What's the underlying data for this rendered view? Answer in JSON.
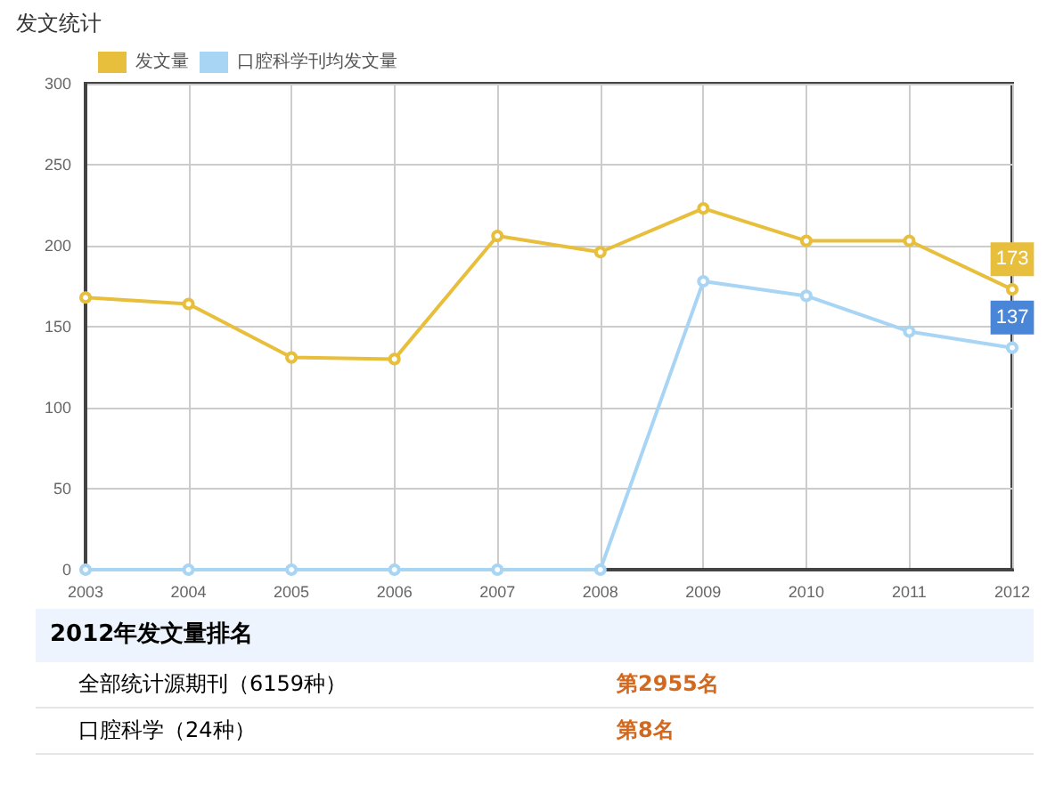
{
  "chart_data": {
    "type": "line",
    "title": "发文统计",
    "categories": [
      "2003",
      "2004",
      "2005",
      "2006",
      "2007",
      "2008",
      "2009",
      "2010",
      "2011",
      "2012"
    ],
    "series": [
      {
        "name": "发文量",
        "color": "#e8bf3c",
        "values": [
          168,
          164,
          131,
          130,
          206,
          196,
          223,
          203,
          203,
          173
        ],
        "value_labels": [
          null,
          null,
          null,
          null,
          null,
          null,
          null,
          null,
          null,
          "173"
        ]
      },
      {
        "name": "口腔科学刊均发文量",
        "color": "#a9d5f5",
        "values": [
          0,
          0,
          0,
          0,
          0,
          0,
          178,
          169,
          147,
          137
        ],
        "value_labels": [
          null,
          null,
          null,
          null,
          null,
          null,
          null,
          null,
          null,
          "137"
        ]
      }
    ],
    "ylim": [
      0,
      300
    ],
    "yticks": [
      0,
      50,
      100,
      150,
      200,
      250,
      300
    ],
    "grid": true,
    "legend": "top left",
    "marker": "circle",
    "annotations": [
      "2012年发文量排名",
      "全部统计源期刊（6159种）",
      "第2955名",
      "口腔科学（24种）",
      "第8名"
    ]
  }
}
